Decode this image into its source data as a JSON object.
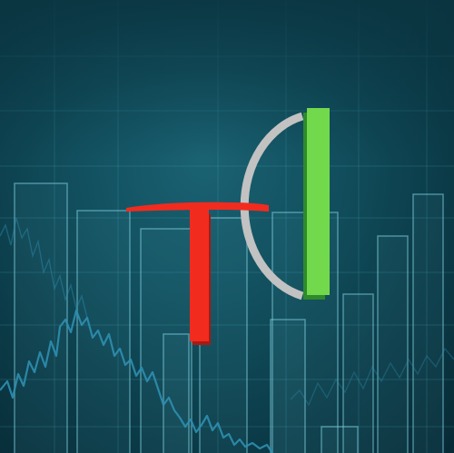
{
  "logo": {
    "name": "tc-logo",
    "colors": {
      "t_red": "#f22b1f",
      "t_red_shadow": "#a81a14",
      "arc_gray": "#c2c2c2",
      "bar_green": "#72d94c",
      "bar_green_shadow": "#2f8a2c"
    }
  },
  "background": {
    "colors": {
      "base": "#0c3a47",
      "grid_line": "#4fb1c4",
      "bar_outline": "#7fd0e0",
      "price_line": "#2d8fb0"
    }
  }
}
